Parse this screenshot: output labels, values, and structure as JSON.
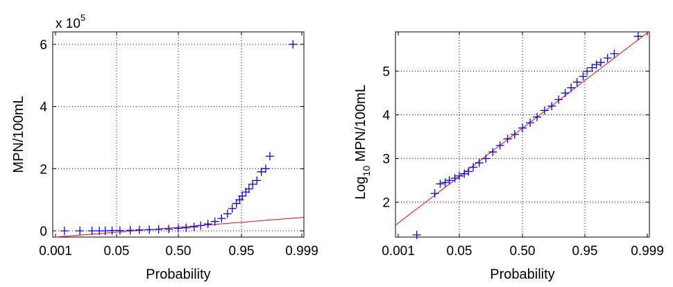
{
  "chart_data": [
    {
      "type": "scatter",
      "xlabel": "Probability",
      "ylabel": "MPN/100mL",
      "exponent_label": {
        "base": "x 10",
        "power": "5"
      },
      "x_ticks": [
        "0.001",
        "0.05",
        "0.50",
        "0.95",
        "0.999"
      ],
      "y_ticks": [
        "0",
        "2",
        "4",
        "6"
      ],
      "ylim": [
        0,
        6
      ],
      "grid": true,
      "reference_line": {
        "color": "#ff0000",
        "points": [
          [
            0.001,
            -0.2
          ],
          [
            0.999,
            0.43
          ]
        ]
      },
      "series": [
        {
          "color": "#0000ff",
          "marker": "+",
          "points": [
            [
              0.002,
              0.0
            ],
            [
              0.006,
              0.0
            ],
            [
              0.013,
              0.0
            ],
            [
              0.02,
              0.0
            ],
            [
              0.028,
              0.0
            ],
            [
              0.04,
              0.01
            ],
            [
              0.06,
              0.01
            ],
            [
              0.1,
              0.02
            ],
            [
              0.15,
              0.03
            ],
            [
              0.22,
              0.04
            ],
            [
              0.3,
              0.05
            ],
            [
              0.4,
              0.06
            ],
            [
              0.5,
              0.08
            ],
            [
              0.58,
              0.1
            ],
            [
              0.66,
              0.13
            ],
            [
              0.72,
              0.17
            ],
            [
              0.78,
              0.22
            ],
            [
              0.83,
              0.3
            ],
            [
              0.87,
              0.4
            ],
            [
              0.9,
              0.55
            ],
            [
              0.92,
              0.72
            ],
            [
              0.935,
              0.88
            ],
            [
              0.945,
              1.0
            ],
            [
              0.952,
              1.12
            ],
            [
              0.96,
              1.25
            ],
            [
              0.966,
              1.35
            ],
            [
              0.972,
              1.5
            ],
            [
              0.978,
              1.62
            ],
            [
              0.983,
              1.9
            ],
            [
              0.987,
              2.0
            ],
            [
              0.99,
              2.4
            ],
            [
              0.998,
              6.0
            ]
          ]
        }
      ]
    },
    {
      "type": "scatter",
      "xlabel": "Probability",
      "ylabel": {
        "prefix": "Log",
        "subscript": "10",
        "suffix": " MPN/100mL"
      },
      "x_ticks": [
        "0.001",
        "0.05",
        "0.50",
        "0.95",
        "0.999"
      ],
      "y_ticks": [
        "2",
        "3",
        "4",
        "5"
      ],
      "ylim": [
        1.2,
        5.9
      ],
      "grid": true,
      "reference_line": {
        "color": "#ff0000",
        "points": [
          [
            0.001,
            1.52
          ],
          [
            0.999,
            5.88
          ]
        ]
      },
      "series": [
        {
          "color": "#0000ff",
          "marker": "+",
          "points": [
            [
              0.004,
              1.25
            ],
            [
              0.013,
              2.2
            ],
            [
              0.018,
              2.42
            ],
            [
              0.024,
              2.45
            ],
            [
              0.03,
              2.5
            ],
            [
              0.04,
              2.55
            ],
            [
              0.05,
              2.6
            ],
            [
              0.065,
              2.65
            ],
            [
              0.08,
              2.7
            ],
            [
              0.1,
              2.8
            ],
            [
              0.13,
              2.9
            ],
            [
              0.17,
              3.0
            ],
            [
              0.22,
              3.15
            ],
            [
              0.28,
              3.3
            ],
            [
              0.35,
              3.45
            ],
            [
              0.42,
              3.55
            ],
            [
              0.5,
              3.7
            ],
            [
              0.58,
              3.82
            ],
            [
              0.65,
              3.95
            ],
            [
              0.72,
              4.1
            ],
            [
              0.78,
              4.2
            ],
            [
              0.83,
              4.35
            ],
            [
              0.87,
              4.5
            ],
            [
              0.9,
              4.62
            ],
            [
              0.925,
              4.75
            ],
            [
              0.945,
              4.88
            ],
            [
              0.955,
              5.0
            ],
            [
              0.965,
              5.08
            ],
            [
              0.972,
              5.15
            ],
            [
              0.978,
              5.2
            ],
            [
              0.985,
              5.3
            ],
            [
              0.99,
              5.4
            ],
            [
              0.998,
              5.8
            ]
          ]
        }
      ]
    }
  ]
}
